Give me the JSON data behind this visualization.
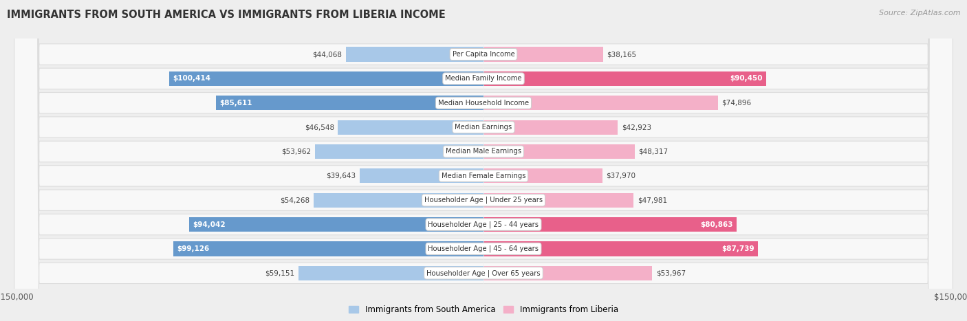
{
  "title": "IMMIGRANTS FROM SOUTH AMERICA VS IMMIGRANTS FROM LIBERIA INCOME",
  "source": "Source: ZipAtlas.com",
  "categories": [
    "Per Capita Income",
    "Median Family Income",
    "Median Household Income",
    "Median Earnings",
    "Median Male Earnings",
    "Median Female Earnings",
    "Householder Age | Under 25 years",
    "Householder Age | 25 - 44 years",
    "Householder Age | 45 - 64 years",
    "Householder Age | Over 65 years"
  ],
  "south_america": [
    44068,
    100414,
    85611,
    46548,
    53962,
    39643,
    54268,
    94042,
    99126,
    59151
  ],
  "liberia": [
    38165,
    90450,
    74896,
    42923,
    48317,
    37970,
    47981,
    80863,
    87739,
    53967
  ],
  "color_sa_light": "#a8c8e8",
  "color_sa_dark": "#6699cc",
  "color_lib_light": "#f4b0c8",
  "color_lib_dark": "#e8608a",
  "max_val": 150000,
  "legend_sa": "Immigrants from South America",
  "legend_lib": "Immigrants from Liberia",
  "bg_color": "#eeeeee",
  "row_bg": "#f8f8f8",
  "row_border": "#dddddd",
  "label_dark_threshold": 75000
}
